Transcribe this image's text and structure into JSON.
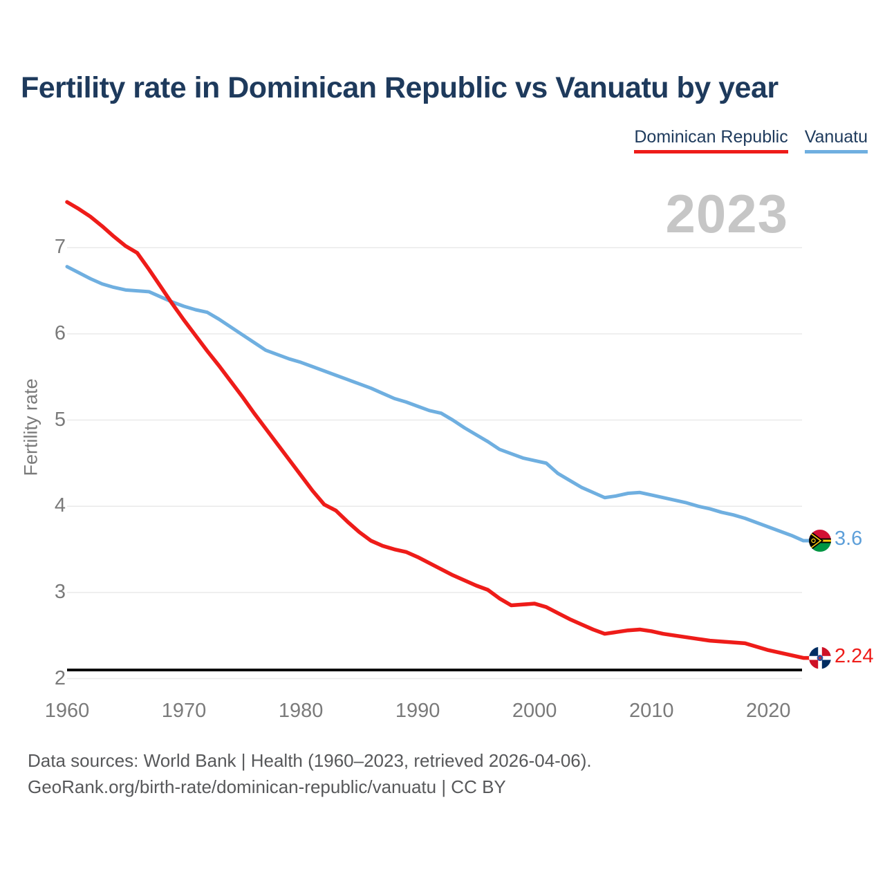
{
  "title": "Fertility rate in Dominican Republic vs Vanuatu by year",
  "watermark": "2023",
  "legend": {
    "items": [
      {
        "label": "Dominican Republic",
        "color": "#ee1c19"
      },
      {
        "label": "Vanuatu",
        "color": "#6fafe0"
      }
    ]
  },
  "footer": {
    "line1": "Data sources: World Bank | Health (1960–2023, retrieved 2026-04-06).",
    "line2": "GeoRank.org/birth-rate/dominican-republic/vanuatu | CC BY"
  },
  "colors": {
    "title_text": "#1e3a5c",
    "tick_text": "#7a7a7a",
    "gridline": "#e9e9e9",
    "watermark": "#c6c6c6",
    "reference_line": "#0a0a0a",
    "background": "#ffffff"
  },
  "chart_data": {
    "type": "line",
    "title": "Fertility rate in Dominican Republic vs Vanuatu by year",
    "xlabel": "",
    "ylabel": "Fertility rate",
    "year_annotation": "2023",
    "grid": "horizontal",
    "legend_position": "top-right",
    "ylim": [
      2,
      7.6
    ],
    "x_range": [
      1960,
      2023
    ],
    "y_ticks": [
      2,
      3,
      4,
      5,
      6,
      7
    ],
    "x_ticks": [
      1960,
      1970,
      1980,
      1990,
      2000,
      2010,
      2020
    ],
    "reference_line": {
      "value": 2.1,
      "color": "#0a0a0a"
    },
    "years": [
      1960,
      1961,
      1962,
      1963,
      1964,
      1965,
      1966,
      1967,
      1968,
      1969,
      1970,
      1971,
      1972,
      1973,
      1974,
      1975,
      1976,
      1977,
      1978,
      1979,
      1980,
      1981,
      1982,
      1983,
      1984,
      1985,
      1986,
      1987,
      1988,
      1989,
      1990,
      1991,
      1992,
      1993,
      1994,
      1995,
      1996,
      1997,
      1998,
      1999,
      2000,
      2001,
      2002,
      2003,
      2004,
      2005,
      2006,
      2007,
      2008,
      2009,
      2010,
      2011,
      2012,
      2013,
      2014,
      2015,
      2016,
      2017,
      2018,
      2019,
      2020,
      2021,
      2022,
      2023
    ],
    "series": [
      {
        "name": "Dominican Republic",
        "color": "#ee1c19",
        "label_color": "#ee1c19",
        "end_label": "2.24",
        "values": [
          7.53,
          7.45,
          7.36,
          7.25,
          7.13,
          7.02,
          6.94,
          6.75,
          6.55,
          6.35,
          6.16,
          5.98,
          5.8,
          5.63,
          5.45,
          5.27,
          5.08,
          4.9,
          4.72,
          4.54,
          4.36,
          4.18,
          4.02,
          3.95,
          3.82,
          3.7,
          3.6,
          3.54,
          3.5,
          3.47,
          3.41,
          3.34,
          3.27,
          3.2,
          3.14,
          3.08,
          3.03,
          2.93,
          2.85,
          2.86,
          2.87,
          2.83,
          2.76,
          2.69,
          2.63,
          2.57,
          2.52,
          2.54,
          2.56,
          2.57,
          2.55,
          2.52,
          2.5,
          2.48,
          2.46,
          2.44,
          2.43,
          2.42,
          2.41,
          2.37,
          2.33,
          2.3,
          2.27,
          2.24
        ]
      },
      {
        "name": "Vanuatu",
        "color": "#6fafe0",
        "label_color": "#5d9fd9",
        "end_label": "3.6",
        "values": [
          6.78,
          6.71,
          6.64,
          6.58,
          6.54,
          6.51,
          6.5,
          6.49,
          6.43,
          6.37,
          6.32,
          6.28,
          6.25,
          6.17,
          6.08,
          5.99,
          5.9,
          5.81,
          5.76,
          5.71,
          5.67,
          5.62,
          5.57,
          5.52,
          5.47,
          5.42,
          5.37,
          5.31,
          5.25,
          5.21,
          5.16,
          5.11,
          5.08,
          5.0,
          4.91,
          4.83,
          4.75,
          4.66,
          4.61,
          4.56,
          4.53,
          4.5,
          4.38,
          4.3,
          4.22,
          4.16,
          4.1,
          4.12,
          4.15,
          4.16,
          4.13,
          4.1,
          4.07,
          4.04,
          4.0,
          3.97,
          3.93,
          3.9,
          3.86,
          3.81,
          3.76,
          3.71,
          3.66,
          3.6
        ]
      }
    ]
  }
}
